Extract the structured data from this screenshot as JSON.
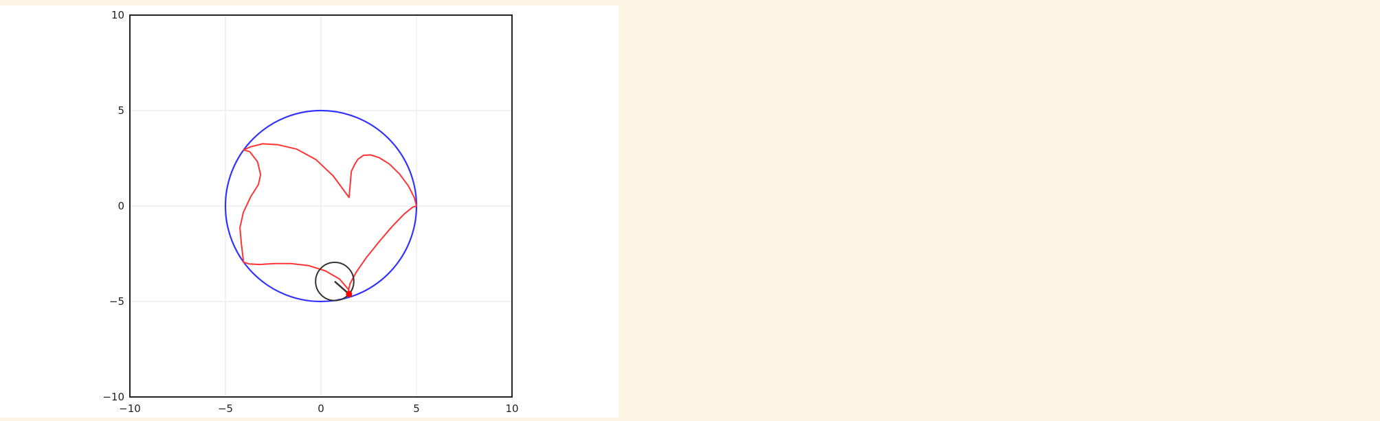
{
  "colors": {
    "page_background": "#fdf5e3",
    "plot_background": "#ffffff",
    "outer_circle": "#3333ff",
    "trace": "#ff3333",
    "rolling_circle": "#333333",
    "tracer_point": "#ff0000",
    "grid": "#e6e6e6"
  },
  "chart_data": {
    "type": "line",
    "title": "",
    "xlabel": "",
    "ylabel": "",
    "xlim": [
      -10,
      10
    ],
    "ylim": [
      -10,
      10
    ],
    "aspect": "equal",
    "grid": true,
    "legend": "none",
    "xticks": [
      -10,
      -5,
      0,
      5,
      10
    ],
    "yticks": [
      -10,
      -5,
      0,
      5,
      10
    ],
    "xtick_labels": [
      "−10",
      "−5",
      "0",
      "5",
      "10"
    ],
    "ytick_labels": [
      "−10",
      "−5",
      "0",
      "5",
      "10"
    ],
    "outer_circle": {
      "center": [
        0,
        0
      ],
      "radius": 5
    },
    "rolling_circle": {
      "center": [
        0.72,
        -3.95
      ],
      "radius": 1
    },
    "radius_segment": {
      "from": [
        0.72,
        -3.95
      ],
      "to": [
        1.47,
        -4.61
      ]
    },
    "tracer_point": {
      "x": 1.47,
      "y": -4.61
    },
    "series": [
      {
        "x": [
          5.0,
          4.8,
          4.34,
          3.71,
          3.03,
          2.37,
          1.83,
          1.52,
          1.43,
          1.55,
          1.45,
          0.97,
          0.24,
          -0.65,
          -1.57,
          -2.42,
          -3.19,
          -3.77,
          -4.06,
          -4.05,
          -4.05,
          -4.16,
          -4.24,
          -4.06,
          -3.67,
          -3.27,
          -3.16,
          -3.32,
          -3.73,
          -4.05,
          -4.05,
          -3.69,
          -3.05,
          -2.24,
          -1.26,
          -0.27,
          0.64,
          1.47
        ],
        "y": [
          0.0,
          -0.06,
          -0.43,
          -1.09,
          -1.89,
          -2.71,
          -3.49,
          -4.07,
          -4.47,
          -4.75,
          -4.38,
          -3.82,
          -3.4,
          -3.12,
          -3.01,
          -3.01,
          -3.06,
          -3.03,
          -2.94,
          -2.94,
          -2.94,
          -2.04,
          -1.14,
          -0.33,
          0.5,
          1.13,
          1.65,
          2.32,
          2.85,
          2.94,
          2.94,
          3.1,
          3.26,
          3.21,
          2.98,
          2.44,
          1.58,
          0.45
        ]
      }
    ],
    "series_note_trace_continuation": {
      "x": [
        1.47,
        1.54,
        1.59,
        1.75,
        1.93,
        2.22,
        2.59,
        3.04,
        3.58,
        4.11,
        4.58,
        4.89,
        5.0
      ],
      "y": [
        0.45,
        1.23,
        1.81,
        2.15,
        2.45,
        2.65,
        2.68,
        2.54,
        2.2,
        1.68,
        1.05,
        0.44,
        0.0
      ]
    }
  }
}
